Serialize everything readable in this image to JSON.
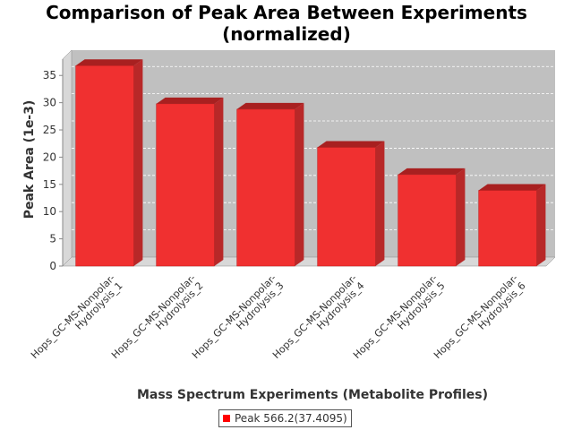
{
  "chart_data": {
    "type": "bar",
    "title": "Comparison of Peak Area Between Experiments (normalized)",
    "title_lines": [
      "Comparison of Peak Area Between Experiments",
      "(normalized)"
    ],
    "xlabel": "Mass Spectrum Experiments (Metabolite Profiles)",
    "ylabel": "Peak Area (1e-3)",
    "categories": [
      "Hops_GC-MS-Nonpolar-Hydrolysis_1",
      "Hops_GC-MS-Nonpolar-Hydrolysis_2",
      "Hops_GC-MS-Nonpolar-Hydrolysis_3",
      "Hops_GC-MS-Nonpolar-Hydrolysis_4",
      "Hops_GC-MS-Nonpolar-Hydrolysis_5",
      "Hops_GC-MS-Nonpolar-Hydrolysis_6"
    ],
    "category_lines": [
      [
        "Hops_GC-MS-Nonpolar-",
        "Hydrolysis_1"
      ],
      [
        "Hops_GC-MS-Nonpolar-",
        "Hydrolysis_2"
      ],
      [
        "Hops_GC-MS-Nonpolar-",
        "Hydrolysis_3"
      ],
      [
        "Hops_GC-MS-Nonpolar-",
        "Hydrolysis_4"
      ],
      [
        "Hops_GC-MS-Nonpolar-",
        "Hydrolysis_5"
      ],
      [
        "Hops_GC-MS-Nonpolar-",
        "Hydrolysis_6"
      ]
    ],
    "series": [
      {
        "name": "Peak 566.2(37.4095)",
        "values": [
          36.8,
          29.8,
          28.8,
          21.8,
          16.8,
          13.9
        ]
      }
    ],
    "ylim": [
      0,
      38
    ],
    "yticks": [
      0,
      5,
      10,
      15,
      20,
      25,
      30,
      35
    ],
    "grid": true,
    "legend_position": "bottom",
    "colors": {
      "bar": "#ff0000",
      "plot_background": "#c0c0c0"
    }
  }
}
